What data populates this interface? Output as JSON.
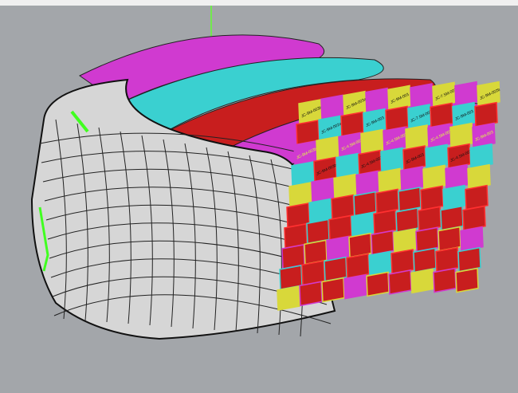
{
  "viewport": {
    "background": "#a3a6aa",
    "panel_colors": [
      "#d8d83a",
      "#3ad0d0",
      "#d03ad0",
      "#c81e1e"
    ],
    "panel_labels": [
      "JC-9M-003b",
      "JC-9M-003a",
      "JC-9M-003",
      "JC-7.5M-003b",
      "JC-9M-002b",
      "JC-9M-002a",
      "JC-9M-003",
      "JC-7.5M-003",
      "JC-9M-003",
      "JC-9M-003b",
      "JC-4.5M-003b",
      "JC-4.5M-003",
      "JC-4.5M-003a",
      "JC-9M-003",
      "JC-9M-003b",
      "JC-4.5M-003b",
      "JC-9M-003",
      "JC-4.5M-003a"
    ]
  }
}
